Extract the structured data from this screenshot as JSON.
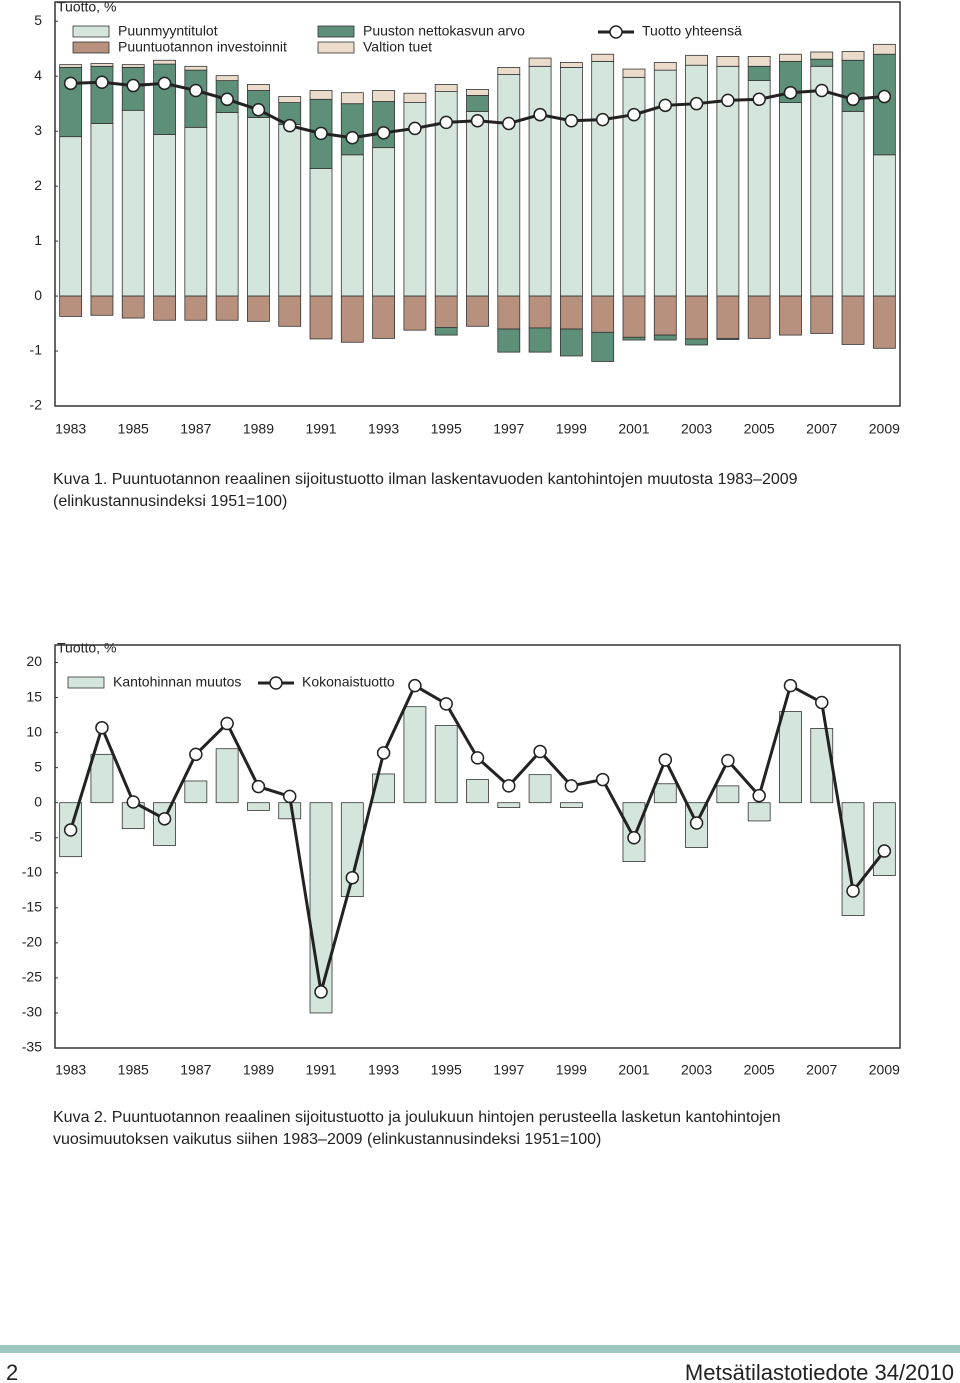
{
  "chart_data": [
    {
      "type": "bar",
      "stacked": true,
      "ylabel": "Tuotto, %",
      "caption": [
        "Kuva 1. Puuntuotannon reaalinen sijoitustuotto ilman laskentavuoden kantohintojen muutosta 1983–2009",
        "(elinkustannusindeksi 1951=100)"
      ],
      "categories": [
        "1983",
        null,
        "1985",
        null,
        "1987",
        null,
        "1989",
        null,
        "1991",
        null,
        "1993",
        null,
        "1995",
        null,
        "1997",
        null,
        "1999",
        null,
        "2001",
        null,
        "2003",
        null,
        "2005",
        null,
        "2007",
        null,
        "2009"
      ],
      "series": [
        {
          "name": "Puunmyyntitulot",
          "type": "bar",
          "color": "#d4e6dc",
          "values": [
            2.9,
            3.14,
            3.38,
            2.94,
            3.07,
            3.34,
            3.25,
            3.12,
            2.32,
            2.57,
            2.7,
            3.52,
            3.72,
            3.36,
            4.03,
            4.18,
            4.16,
            4.27,
            3.98,
            4.11,
            4.2,
            4.18,
            3.92,
            3.52,
            4.18,
            3.36,
            2.57
          ]
        },
        {
          "name": "Puuntuotannon investoinnit",
          "type": "bar",
          "color": "#b8907e",
          "values": [
            -0.37,
            -0.35,
            -0.4,
            -0.44,
            -0.44,
            -0.44,
            -0.46,
            -0.55,
            -0.78,
            -0.84,
            -0.77,
            -0.62,
            -0.57,
            -0.55,
            -0.6,
            -0.58,
            -0.6,
            -0.66,
            -0.75,
            -0.71,
            -0.78,
            -0.77,
            -0.77,
            -0.71,
            -0.68,
            -0.88,
            -0.95
          ]
        },
        {
          "name": "Puuston nettokasvun arvo",
          "type": "bar",
          "color": "#5e8f78",
          "values": [
            1.26,
            1.04,
            0.78,
            1.28,
            1.04,
            0.58,
            0.49,
            0.4,
            1.26,
            0.93,
            0.84,
            0,
            -0.14,
            0.29,
            -0.42,
            -0.44,
            -0.49,
            -0.53,
            -0.05,
            -0.09,
            -0.11,
            -0.02,
            0.26,
            0.75,
            0.13,
            0.93,
            1.83
          ]
        },
        {
          "name": "Valtion tuet",
          "type": "bar",
          "color": "#eadbcb",
          "values": [
            0.05,
            0.05,
            0.05,
            0.07,
            0.07,
            0.09,
            0.11,
            0.11,
            0.16,
            0.2,
            0.2,
            0.17,
            0.13,
            0.11,
            0.13,
            0.15,
            0.09,
            0.13,
            0.15,
            0.14,
            0.18,
            0.18,
            0.18,
            0.13,
            0.13,
            0.16,
            0.18
          ]
        },
        {
          "name": "Tuotto yhteensä",
          "type": "line",
          "color": "#222222",
          "values": [
            3.87,
            3.89,
            3.83,
            3.87,
            3.74,
            3.58,
            3.39,
            3.1,
            2.96,
            2.88,
            2.97,
            3.05,
            3.16,
            3.19,
            3.14,
            3.3,
            3.19,
            3.21,
            3.3,
            3.47,
            3.5,
            3.56,
            3.58,
            3.7,
            3.74,
            3.58,
            3.63
          ]
        }
      ],
      "ylim": [
        -2,
        5.35
      ],
      "yticks": [
        -2,
        -1,
        0,
        1,
        2,
        3,
        4,
        5
      ],
      "grid": false
    },
    {
      "type": "bar",
      "stacked": false,
      "ylabel": "Tuotto, %",
      "caption": [
        "Kuva 2. Puuntuotannon reaalinen sijoitustuotto ja joulukuun hintojen perusteella lasketun kantohintojen",
        "vuosimuutoksen vaikutus siihen 1983–2009 (elinkustannusindeksi 1951=100)"
      ],
      "categories": [
        "1983",
        null,
        "1985",
        null,
        "1987",
        null,
        "1989",
        null,
        "1991",
        null,
        "1993",
        null,
        "1995",
        null,
        "1997",
        null,
        "1999",
        null,
        "2001",
        null,
        "2003",
        null,
        "2005",
        null,
        "2007",
        null,
        "2009"
      ],
      "series": [
        {
          "name": "Kantohinnan muutos",
          "type": "bar",
          "color": "#d4e6dc",
          "values": [
            -7.7,
            6.9,
            -3.7,
            -6.1,
            3.1,
            7.7,
            -1.1,
            -2.3,
            -30.0,
            -13.4,
            4.1,
            13.7,
            11.0,
            3.3,
            -0.7,
            4.0,
            -0.7,
            0,
            -8.4,
            2.7,
            -6.4,
            2.4,
            -2.6,
            13.0,
            10.6,
            -16.1,
            -10.4
          ]
        },
        {
          "name": "Kokonaistuotto",
          "type": "line",
          "color": "#222222",
          "values": [
            -3.9,
            10.7,
            0.1,
            -2.3,
            6.9,
            11.3,
            2.3,
            0.9,
            -27.0,
            -10.7,
            7.1,
            16.7,
            14.1,
            6.4,
            2.4,
            7.3,
            2.4,
            3.3,
            -5.0,
            6.1,
            -2.9,
            6.0,
            1.0,
            16.7,
            14.3,
            -12.6,
            -6.9
          ]
        }
      ],
      "ylim": [
        -35,
        22.5
      ],
      "yticks": [
        -35,
        -30,
        -25,
        -20,
        -15,
        -10,
        -5,
        0,
        5,
        10,
        15,
        20
      ],
      "grid": false
    }
  ],
  "footer": {
    "page": "2",
    "publication": "Metsätilastotiedote 34/2010"
  }
}
